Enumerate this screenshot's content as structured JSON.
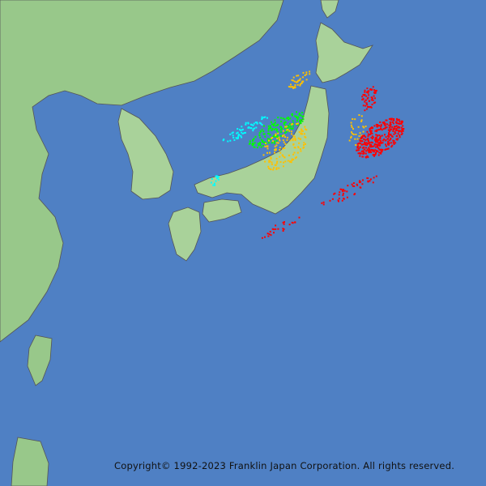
{
  "copyright": "Copyright© 1992-2023 Franklin Japan Corporation. All rights reserved.",
  "colors": {
    "sea": "#4f80c4",
    "land_low": "#a9d29a",
    "land_high": "#6fa866",
    "border": "#555555",
    "strike_recent": "#ff0000",
    "strike_2": "#ffc000",
    "strike_3": "#00ff00",
    "strike_4": "#00ffff",
    "strike_5": "#0050ff"
  }
}
